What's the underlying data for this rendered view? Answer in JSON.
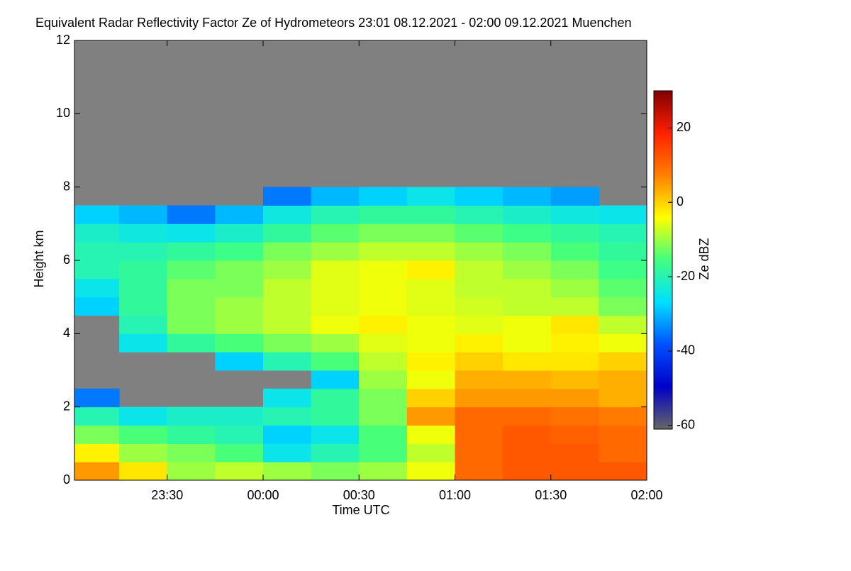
{
  "chart_data": {
    "type": "heatmap",
    "title": "Equivalent Radar Reflectivity Factor Ze of Hydrometeors   23:01 08.12.2021 - 02:00 09.12.2021 Muenchen",
    "x_label": "Time UTC",
    "y_label": "Height km",
    "colorbar_label": "Ze dBZ",
    "xlim": [
      23.0167,
      26
    ],
    "xticks": [
      {
        "value": 23.5,
        "label": "23:30"
      },
      {
        "value": 24,
        "label": "00:00"
      },
      {
        "value": 24.5,
        "label": "00:30"
      },
      {
        "value": 25,
        "label": "01:00"
      },
      {
        "value": 25.5,
        "label": "01:30"
      },
      {
        "value": 26,
        "label": "02:00"
      }
    ],
    "ylim": [
      0,
      12
    ],
    "yticks": [
      0,
      2,
      4,
      6,
      8,
      10,
      12
    ],
    "clim": [
      -61,
      30
    ],
    "cticks": [
      -60,
      -40,
      -20,
      0,
      20
    ],
    "colorscale": [
      "#666666",
      "#0000c8",
      "#0050ff",
      "#00e0ff",
      "#40ff80",
      "#ffff00",
      "#ff8000",
      "#ff2000",
      "#800000"
    ],
    "x": [
      23.125,
      23.375,
      23.625,
      23.875,
      24.125,
      24.375,
      24.625,
      24.875,
      25.125,
      25.375,
      25.625,
      25.875
    ],
    "y": [
      0.25,
      0.75,
      1.25,
      1.75,
      2.25,
      2.75,
      3.25,
      3.75,
      4.25,
      4.75,
      5.25,
      5.75,
      6.25,
      6.75,
      7.25,
      7.75
    ],
    "z": [
      [
        5,
        -2,
        -10,
        -8,
        -10,
        -12,
        -10,
        -5,
        10,
        12,
        12,
        12
      ],
      [
        -3,
        -10,
        -12,
        -15,
        -25,
        -20,
        -15,
        -8,
        10,
        12,
        12,
        10
      ],
      [
        -12,
        -15,
        -18,
        -20,
        -28,
        -25,
        -15,
        -5,
        10,
        12,
        11,
        10
      ],
      [
        -20,
        -25,
        -22,
        -22,
        -20,
        -18,
        -12,
        5,
        10,
        10,
        9,
        8
      ],
      [
        -35,
        null,
        null,
        null,
        -25,
        -18,
        -12,
        0,
        5,
        5,
        5,
        3
      ],
      [
        null,
        null,
        null,
        null,
        null,
        -28,
        -10,
        -5,
        3,
        3,
        2,
        3
      ],
      [
        null,
        null,
        null,
        -28,
        -20,
        -15,
        -8,
        -3,
        0,
        -2,
        -2,
        0
      ],
      [
        null,
        -25,
        -18,
        -15,
        -12,
        -10,
        -6,
        -5,
        -3,
        -5,
        -3,
        -5
      ],
      [
        null,
        -20,
        -12,
        -10,
        -8,
        -5,
        -3,
        -5,
        -6,
        -5,
        -2,
        -8
      ],
      [
        -28,
        -18,
        -12,
        -10,
        -8,
        -6,
        -5,
        -6,
        -7,
        -8,
        -8,
        -12
      ],
      [
        -25,
        -18,
        -12,
        -12,
        -8,
        -6,
        -5,
        -6,
        -8,
        -8,
        -10,
        -14
      ],
      [
        -20,
        -18,
        -14,
        -12,
        -10,
        -6,
        -5,
        -3,
        -8,
        -10,
        -12,
        -16
      ],
      [
        -20,
        -20,
        -18,
        -16,
        -12,
        -10,
        -8,
        -8,
        -10,
        -12,
        -15,
        -18
      ],
      [
        -22,
        -24,
        -25,
        -22,
        -18,
        -14,
        -12,
        -12,
        -14,
        -16,
        -18,
        -20
      ],
      [
        -28,
        -30,
        -35,
        -30,
        -24,
        -20,
        -18,
        -18,
        -20,
        -22,
        -24,
        -25
      ],
      [
        null,
        null,
        null,
        null,
        -35,
        -30,
        -28,
        -25,
        -28,
        -30,
        -32,
        null
      ]
    ]
  }
}
